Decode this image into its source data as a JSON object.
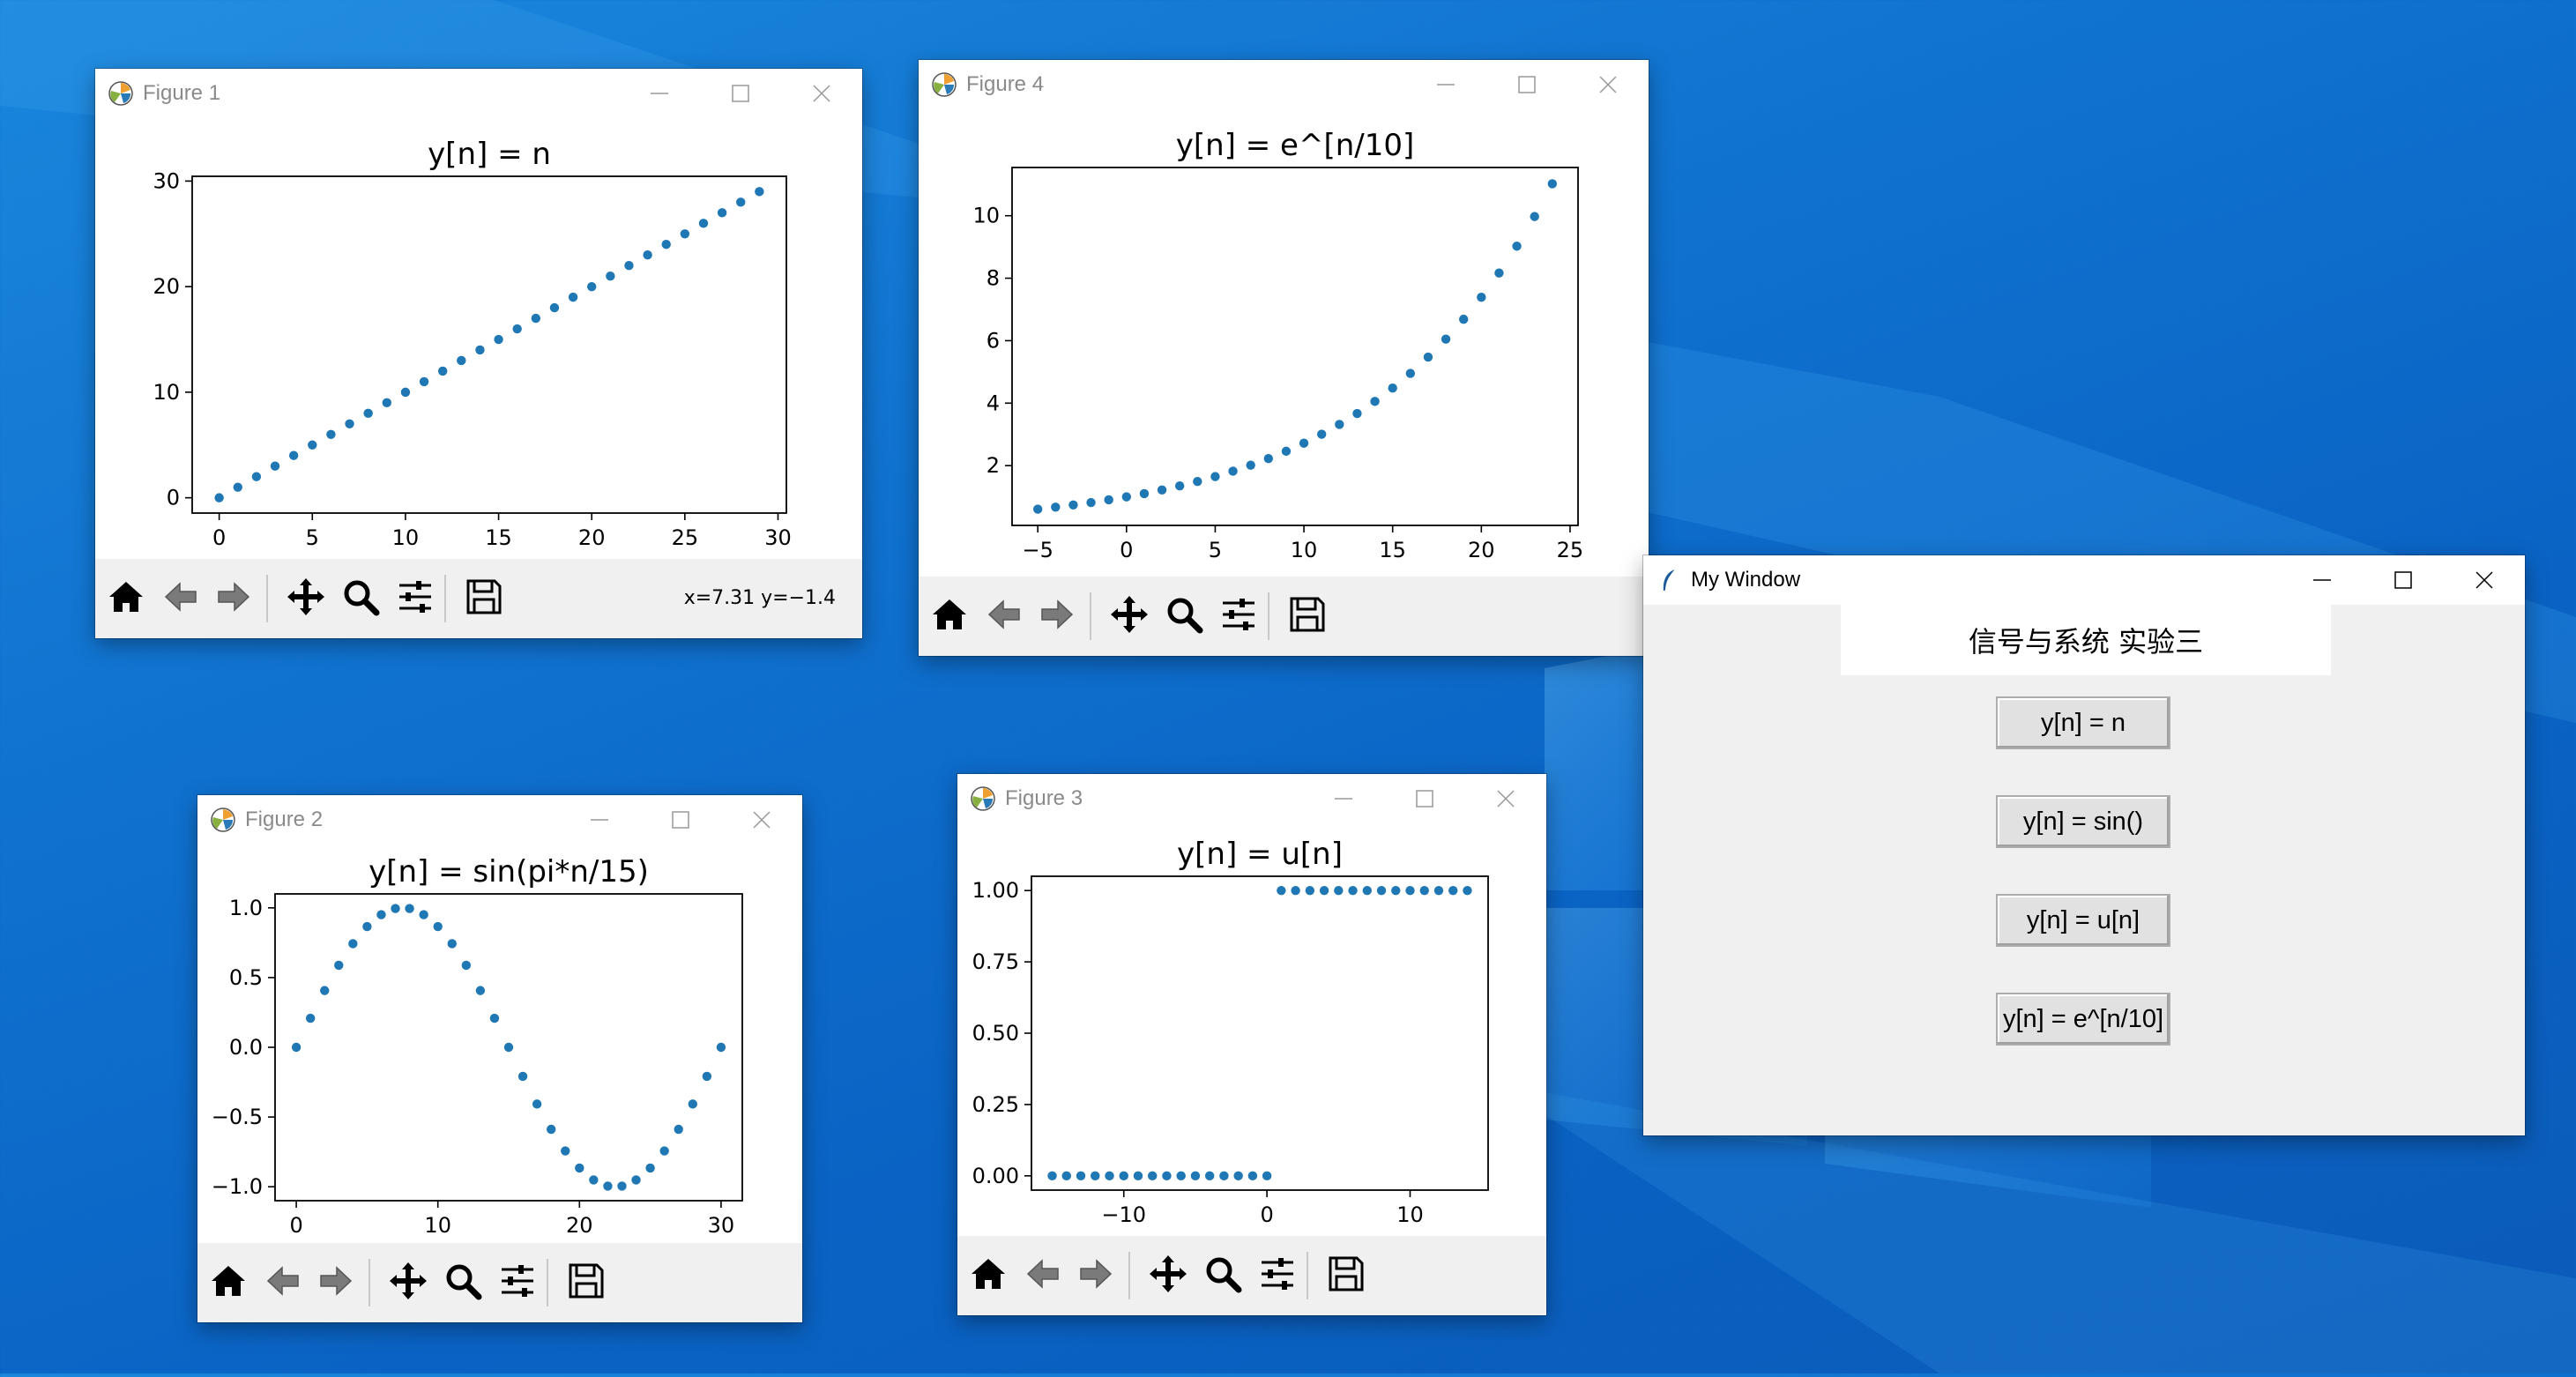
{
  "colors": {
    "desktop": "#0b68c9",
    "series": "#1f77b4",
    "toolbar_bg": "#f0f0f0"
  },
  "my_window": {
    "title": "My Window",
    "header_label": "信号与系统 实验三",
    "buttons": [
      "y[n] = n",
      "y[n] = sin()",
      "y[n] = u[n]",
      "y[n] = e^[n/10]"
    ]
  },
  "figures": [
    {
      "window_title": "Figure 1",
      "status": "x=7.31 y=−1.4"
    },
    {
      "window_title": "Figure 4",
      "status": ""
    },
    {
      "window_title": "Figure 2",
      "status": ""
    },
    {
      "window_title": "Figure 3",
      "status": ""
    }
  ],
  "toolbar_icons": [
    "home-icon",
    "back-arrow-icon",
    "forward-arrow-icon",
    "pan-icon",
    "zoom-icon",
    "subplots-icon",
    "save-icon"
  ],
  "chart_data": [
    {
      "type": "scatter",
      "title": "y[n] = n",
      "x": [
        0,
        1,
        2,
        3,
        4,
        5,
        6,
        7,
        8,
        9,
        10,
        11,
        12,
        13,
        14,
        15,
        16,
        17,
        18,
        19,
        20,
        21,
        22,
        23,
        24,
        25,
        26,
        27,
        28,
        29
      ],
      "y": [
        0,
        1,
        2,
        3,
        4,
        5,
        6,
        7,
        8,
        9,
        10,
        11,
        12,
        13,
        14,
        15,
        16,
        17,
        18,
        19,
        20,
        21,
        22,
        23,
        24,
        25,
        26,
        27,
        28,
        29
      ],
      "xlim": [
        -1.45,
        30.45
      ],
      "ylim": [
        -1.45,
        30.45
      ],
      "xticks": [
        0,
        5,
        10,
        15,
        20,
        25,
        30
      ],
      "yticks": [
        0,
        10,
        20,
        30
      ],
      "xtick_labels": [
        "0",
        "5",
        "10",
        "15",
        "20",
        "25",
        "30"
      ],
      "ytick_labels": [
        "0",
        "10",
        "20",
        "30"
      ],
      "grid": false
    },
    {
      "type": "scatter",
      "title": "y[n] = e^[n/10]",
      "x": [
        -5,
        -4,
        -3,
        -2,
        -1,
        0,
        1,
        2,
        3,
        4,
        5,
        6,
        7,
        8,
        9,
        10,
        11,
        12,
        13,
        14,
        15,
        16,
        17,
        18,
        19,
        20,
        21,
        22,
        23,
        24
      ],
      "y": [
        0.607,
        0.67,
        0.741,
        0.819,
        0.905,
        1.0,
        1.105,
        1.221,
        1.35,
        1.492,
        1.649,
        1.822,
        2.014,
        2.226,
        2.46,
        2.718,
        3.004,
        3.32,
        3.669,
        4.055,
        4.482,
        4.953,
        5.474,
        6.05,
        6.686,
        7.389,
        8.166,
        9.025,
        9.974,
        11.023
      ],
      "xlim": [
        -6.45,
        25.45
      ],
      "ylim": [
        0.086,
        11.544
      ],
      "xticks": [
        -5,
        0,
        5,
        10,
        15,
        20,
        25
      ],
      "yticks": [
        2,
        4,
        6,
        8,
        10
      ],
      "xtick_labels": [
        "−5",
        "0",
        "5",
        "10",
        "15",
        "20",
        "25"
      ],
      "ytick_labels": [
        "2",
        "4",
        "6",
        "8",
        "10"
      ],
      "grid": false
    },
    {
      "type": "scatter",
      "title": "y[n] = sin(pi*n/15)",
      "x": [
        0,
        1,
        2,
        3,
        4,
        5,
        6,
        7,
        8,
        9,
        10,
        11,
        12,
        13,
        14,
        15,
        16,
        17,
        18,
        19,
        20,
        21,
        22,
        23,
        24,
        25,
        26,
        27,
        28,
        29,
        30
      ],
      "y": [
        0,
        0.208,
        0.407,
        0.588,
        0.743,
        0.866,
        0.951,
        0.995,
        0.995,
        0.951,
        0.866,
        0.743,
        0.588,
        0.407,
        0.208,
        0,
        -0.208,
        -0.407,
        -0.588,
        -0.743,
        -0.866,
        -0.951,
        -0.995,
        -0.995,
        -0.951,
        -0.866,
        -0.743,
        -0.588,
        -0.407,
        -0.208,
        0
      ],
      "xlim": [
        -1.5,
        31.5
      ],
      "ylim": [
        -1.1,
        1.1
      ],
      "xticks": [
        0,
        10,
        20,
        30
      ],
      "yticks": [
        -1.0,
        -0.5,
        0.0,
        0.5,
        1.0
      ],
      "xtick_labels": [
        "0",
        "10",
        "20",
        "30"
      ],
      "ytick_labels": [
        "−1.0",
        "−0.5",
        "0.0",
        "0.5",
        "1.0"
      ],
      "grid": false
    },
    {
      "type": "scatter",
      "title": "y[n] = u[n]",
      "x": [
        -15,
        -14,
        -13,
        -12,
        -11,
        -10,
        -9,
        -8,
        -7,
        -6,
        -5,
        -4,
        -3,
        -2,
        -1,
        0,
        1,
        2,
        3,
        4,
        5,
        6,
        7,
        8,
        9,
        10,
        11,
        12,
        13,
        14
      ],
      "y": [
        0,
        0,
        0,
        0,
        0,
        0,
        0,
        0,
        0,
        0,
        0,
        0,
        0,
        0,
        0,
        0,
        1,
        1,
        1,
        1,
        1,
        1,
        1,
        1,
        1,
        1,
        1,
        1,
        1,
        1
      ],
      "xlim": [
        -16.45,
        15.45
      ],
      "ylim": [
        -0.05,
        1.05
      ],
      "xticks": [
        -10,
        0,
        10
      ],
      "yticks": [
        0,
        0.25,
        0.5,
        0.75,
        1.0
      ],
      "xtick_labels": [
        "−10",
        "0",
        "10"
      ],
      "ytick_labels": [
        "0.00",
        "0.25",
        "0.50",
        "0.75",
        "1.00"
      ],
      "grid": false
    }
  ]
}
